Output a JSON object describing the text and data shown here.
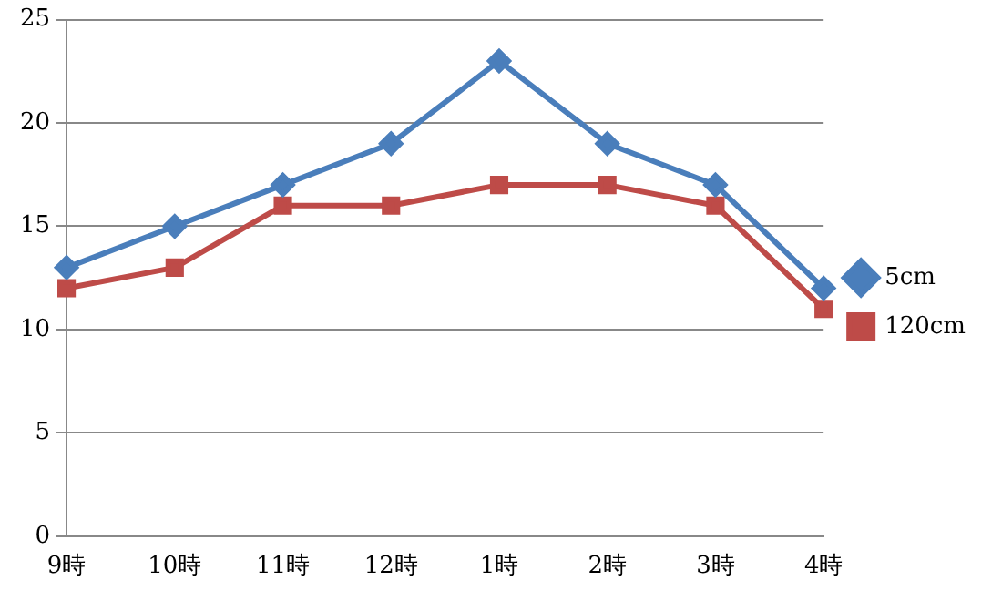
{
  "chart_data": {
    "type": "line",
    "categories": [
      "9時",
      "10時",
      "11時",
      "12時",
      "1時",
      "2時",
      "3時",
      "4時"
    ],
    "series": [
      {
        "name": "5cm",
        "color": "#4a7ebb",
        "marker": "diamond",
        "values": [
          13,
          15,
          17,
          19,
          23,
          19,
          17,
          12
        ]
      },
      {
        "name": "120cm",
        "color": "#be4b48",
        "marker": "square",
        "values": [
          12,
          13,
          16,
          16,
          17,
          17,
          16,
          11
        ]
      }
    ],
    "ylim": [
      0,
      25
    ],
    "yticks": [
      0,
      5,
      10,
      15,
      20,
      25
    ],
    "grid": "y",
    "legend": "right"
  }
}
